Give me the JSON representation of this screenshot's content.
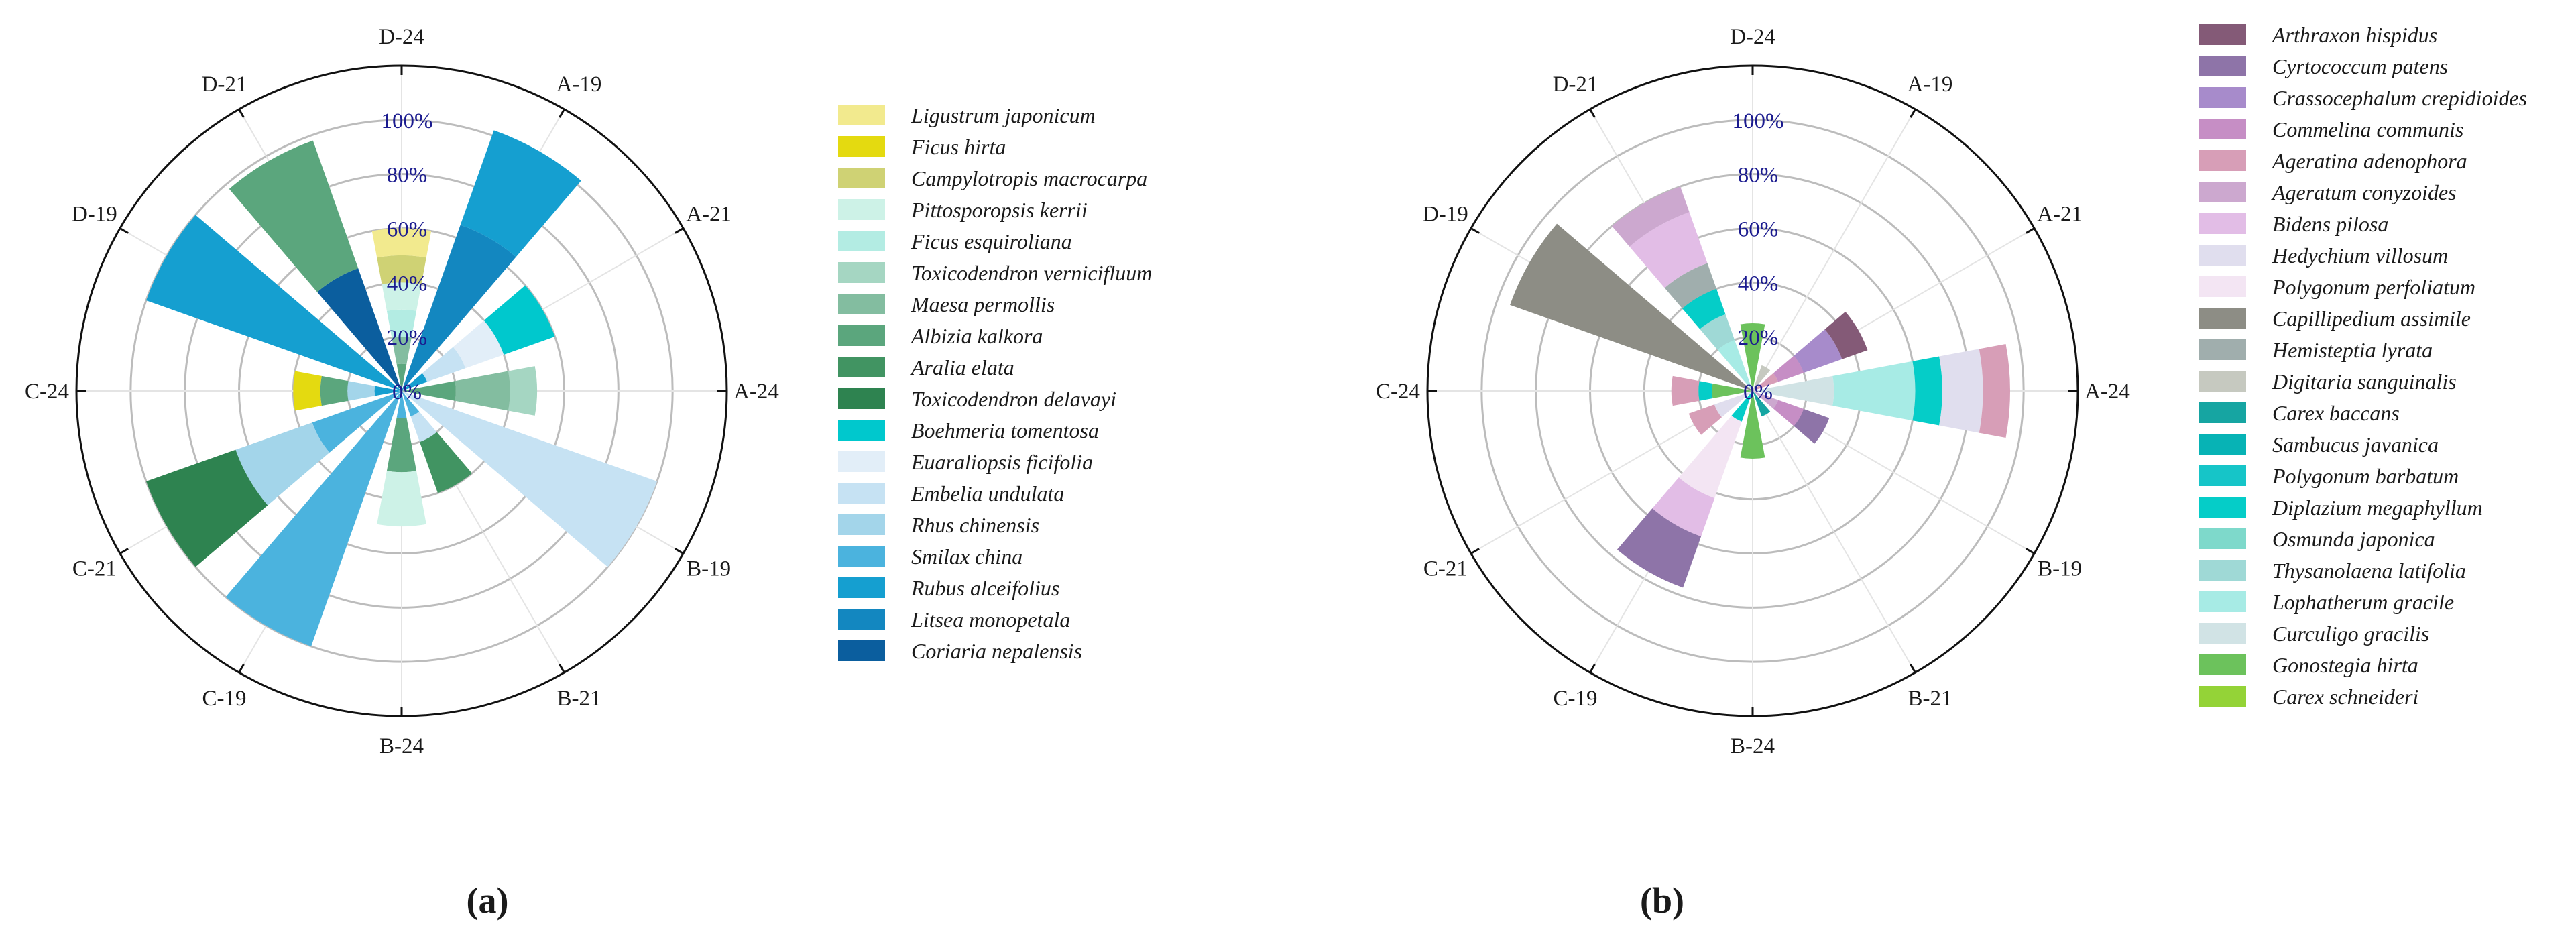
{
  "chart_data": [
    {
      "type": "polar-stacked-bar",
      "panel_label": "(a)",
      "categories": [
        "D-24",
        "A-19",
        "A-21",
        "A-24",
        "B-19",
        "B-21",
        "B-24",
        "C-19",
        "C-21",
        "C-24",
        "D-19",
        "D-21"
      ],
      "radial_ticks": [
        "0%",
        "20%",
        "40%",
        "60%",
        "80%",
        "100%"
      ],
      "rlim": [
        0,
        120
      ],
      "series": [
        {
          "name": "Coriaria nepalensis",
          "color": "#0b5e9e",
          "values": [
            0,
            0,
            0,
            0,
            0,
            0,
            0,
            0,
            0,
            0,
            0,
            48
          ]
        },
        {
          "name": "Litsea monopetala",
          "color": "#1387c0",
          "values": [
            0,
            65,
            0,
            0,
            0,
            0,
            0,
            0,
            0,
            0,
            0,
            0
          ]
        },
        {
          "name": "Rubus alceifolius",
          "color": "#159fd0",
          "values": [
            0,
            37,
            10,
            0,
            0,
            0,
            0,
            0,
            0,
            10,
            100,
            0
          ]
        },
        {
          "name": "Smilax china",
          "color": "#4bb3de",
          "values": [
            0,
            0,
            0,
            0,
            0,
            10,
            10,
            100,
            35,
            0,
            0,
            0
          ]
        },
        {
          "name": "Rhus chinensis",
          "color": "#a3d5ea",
          "values": [
            0,
            0,
            0,
            0,
            0,
            0,
            0,
            0,
            30,
            10,
            0,
            0
          ]
        },
        {
          "name": "Embelia undulata",
          "color": "#c6e2f3",
          "values": [
            0,
            0,
            15,
            0,
            100,
            10,
            0,
            0,
            0,
            0,
            0,
            0
          ]
        },
        {
          "name": "Euaraliopsis ficifolia",
          "color": "#e2eef8",
          "values": [
            0,
            0,
            15,
            0,
            0,
            0,
            0,
            0,
            0,
            0,
            0,
            0
          ]
        },
        {
          "name": "Boehmeria tomentosa",
          "color": "#00c8cd",
          "values": [
            0,
            0,
            20,
            0,
            0,
            0,
            0,
            0,
            0,
            0,
            0,
            0
          ]
        },
        {
          "name": "Toxicodendron delavayi",
          "color": "#2e8350",
          "values": [
            0,
            0,
            0,
            0,
            0,
            0,
            0,
            0,
            35,
            0,
            0,
            0
          ]
        },
        {
          "name": "Aralia elata",
          "color": "#419462",
          "values": [
            0,
            0,
            0,
            0,
            0,
            20,
            0,
            0,
            0,
            0,
            0,
            0
          ]
        },
        {
          "name": "Albizia kalkora",
          "color": "#5ba67d",
          "values": [
            10,
            0,
            0,
            20,
            0,
            0,
            20,
            0,
            0,
            10,
            0,
            50
          ]
        },
        {
          "name": "Maesa permollis",
          "color": "#83bda0",
          "values": [
            10,
            0,
            0,
            20,
            0,
            0,
            0,
            0,
            0,
            0,
            0,
            0
          ]
        },
        {
          "name": "Toxicodendron vernicifluum",
          "color": "#a5d6c2",
          "values": [
            0,
            0,
            0,
            10,
            0,
            0,
            0,
            0,
            0,
            0,
            0,
            0
          ]
        },
        {
          "name": "Ficus esquiroliana",
          "color": "#b3ece3",
          "values": [
            10,
            0,
            0,
            0,
            0,
            0,
            0,
            0,
            0,
            0,
            0,
            0
          ]
        },
        {
          "name": "Pittosporopsis kerrii",
          "color": "#cdf2e7",
          "values": [
            10,
            0,
            0,
            0,
            0,
            0,
            20,
            0,
            0,
            0,
            0,
            0
          ]
        },
        {
          "name": "Campylotropis macrocarpa",
          "color": "#cfd274",
          "values": [
            10,
            0,
            0,
            0,
            0,
            0,
            0,
            0,
            0,
            0,
            0,
            0
          ]
        },
        {
          "name": "Ficus hirta",
          "color": "#e4da10",
          "values": [
            0,
            0,
            0,
            0,
            0,
            0,
            0,
            0,
            0,
            10,
            0,
            0
          ]
        },
        {
          "name": "Ligustrum japonicum",
          "color": "#f2ea8e",
          "values": [
            10,
            0,
            0,
            0,
            0,
            0,
            0,
            0,
            0,
            0,
            0,
            0
          ]
        }
      ]
    },
    {
      "type": "polar-stacked-bar",
      "panel_label": "(b)",
      "categories": [
        "D-24",
        "A-19",
        "A-21",
        "A-24",
        "B-19",
        "B-21",
        "B-24",
        "C-19",
        "C-21",
        "C-24",
        "D-19",
        "D-21"
      ],
      "radial_ticks": [
        "0%",
        "20%",
        "40%",
        "60%",
        "80%",
        "100%"
      ],
      "rlim": [
        0,
        120
      ],
      "series": [
        {
          "name": "Carex schneideri",
          "color": "#94d337",
          "values": [
            0,
            0,
            0,
            0,
            0,
            0,
            0,
            0,
            0,
            0,
            0,
            0
          ]
        },
        {
          "name": "Gonostegia hirta",
          "color": "#6cc25c",
          "values": [
            25,
            0,
            0,
            0,
            0,
            0,
            25,
            0,
            0,
            15,
            0,
            0
          ]
        },
        {
          "name": "Curculigo gracilis",
          "color": "#d1e3e5",
          "values": [
            0,
            0,
            0,
            30,
            0,
            0,
            0,
            0,
            0,
            0,
            0,
            0
          ]
        },
        {
          "name": "Lophatherum gracile",
          "color": "#a7ebe5",
          "values": [
            0,
            0,
            0,
            30,
            0,
            0,
            0,
            0,
            0,
            0,
            0,
            20
          ]
        },
        {
          "name": "Thysanolaena latifolia",
          "color": "#9fd9d6",
          "values": [
            0,
            0,
            0,
            0,
            0,
            0,
            0,
            0,
            0,
            0,
            0,
            10
          ]
        },
        {
          "name": "Osmunda japonica",
          "color": "#7ed9cb",
          "values": [
            0,
            0,
            0,
            0,
            0,
            0,
            0,
            0,
            0,
            0,
            0,
            0
          ]
        },
        {
          "name": "Diplazium megaphyllum",
          "color": "#05cdc8",
          "values": [
            0,
            0,
            0,
            10,
            0,
            0,
            0,
            12,
            0,
            5,
            0,
            10
          ]
        },
        {
          "name": "Polygonum barbatum",
          "color": "#16c5c8",
          "values": [
            0,
            0,
            0,
            0,
            0,
            0,
            0,
            0,
            0,
            0,
            0,
            0
          ]
        },
        {
          "name": "Sambucus javanica",
          "color": "#07b3b5",
          "values": [
            0,
            0,
            0,
            0,
            0,
            0,
            0,
            0,
            0,
            0,
            0,
            0
          ]
        },
        {
          "name": "Carex baccans",
          "color": "#16a5a2",
          "values": [
            0,
            0,
            0,
            0,
            0,
            10,
            0,
            0,
            0,
            0,
            0,
            0
          ]
        },
        {
          "name": "Digitaria sanguinalis",
          "color": "#c6c9c0",
          "values": [
            0,
            10,
            0,
            0,
            0,
            0,
            0,
            0,
            0,
            0,
            0,
            0
          ]
        },
        {
          "name": "Hemisteptia lyrata",
          "color": "#a0aead",
          "values": [
            0,
            0,
            0,
            0,
            0,
            0,
            0,
            0,
            0,
            0,
            0,
            10
          ]
        },
        {
          "name": "Capillipedium assimile",
          "color": "#8d8d85",
          "values": [
            0,
            0,
            0,
            0,
            0,
            0,
            0,
            0,
            0,
            0,
            95,
            0
          ]
        },
        {
          "name": "Polygonum perfoliatum",
          "color": "#f3e5f3",
          "values": [
            0,
            0,
            0,
            0,
            0,
            0,
            0,
            30,
            0,
            0,
            0,
            0
          ]
        },
        {
          "name": "Hedychium villosum",
          "color": "#e0deee",
          "values": [
            0,
            0,
            0,
            15,
            0,
            0,
            0,
            0,
            15,
            0,
            0,
            0
          ]
        },
        {
          "name": "Bidens pilosa",
          "color": "#e2bde6",
          "values": [
            0,
            0,
            0,
            0,
            0,
            0,
            0,
            15,
            0,
            0,
            0,
            20
          ]
        },
        {
          "name": "Ageratum conyzoides",
          "color": "#cca8cf",
          "values": [
            0,
            0,
            0,
            0,
            10,
            0,
            0,
            0,
            0,
            0,
            0,
            10
          ]
        },
        {
          "name": "Ageratina adenophora",
          "color": "#d79eb7",
          "values": [
            0,
            0,
            10,
            10,
            0,
            0,
            0,
            0,
            10,
            10,
            0,
            0
          ]
        },
        {
          "name": "Commelina communis",
          "color": "#c68ec5",
          "values": [
            0,
            0,
            10,
            0,
            10,
            0,
            0,
            0,
            0,
            0,
            0,
            0
          ]
        },
        {
          "name": "Crassocephalum crepidioides",
          "color": "#a78bcb",
          "values": [
            0,
            0,
            15,
            0,
            0,
            0,
            0,
            0,
            0,
            0,
            0,
            0
          ]
        },
        {
          "name": "Cyrtococcum patens",
          "color": "#8e74a8",
          "values": [
            0,
            0,
            0,
            0,
            10,
            0,
            0,
            20,
            0,
            0,
            0,
            0
          ]
        },
        {
          "name": "Arthraxon hispidus",
          "color": "#845a77",
          "values": [
            0,
            0,
            10,
            0,
            0,
            0,
            0,
            0,
            0,
            0,
            0,
            0
          ]
        }
      ]
    }
  ]
}
